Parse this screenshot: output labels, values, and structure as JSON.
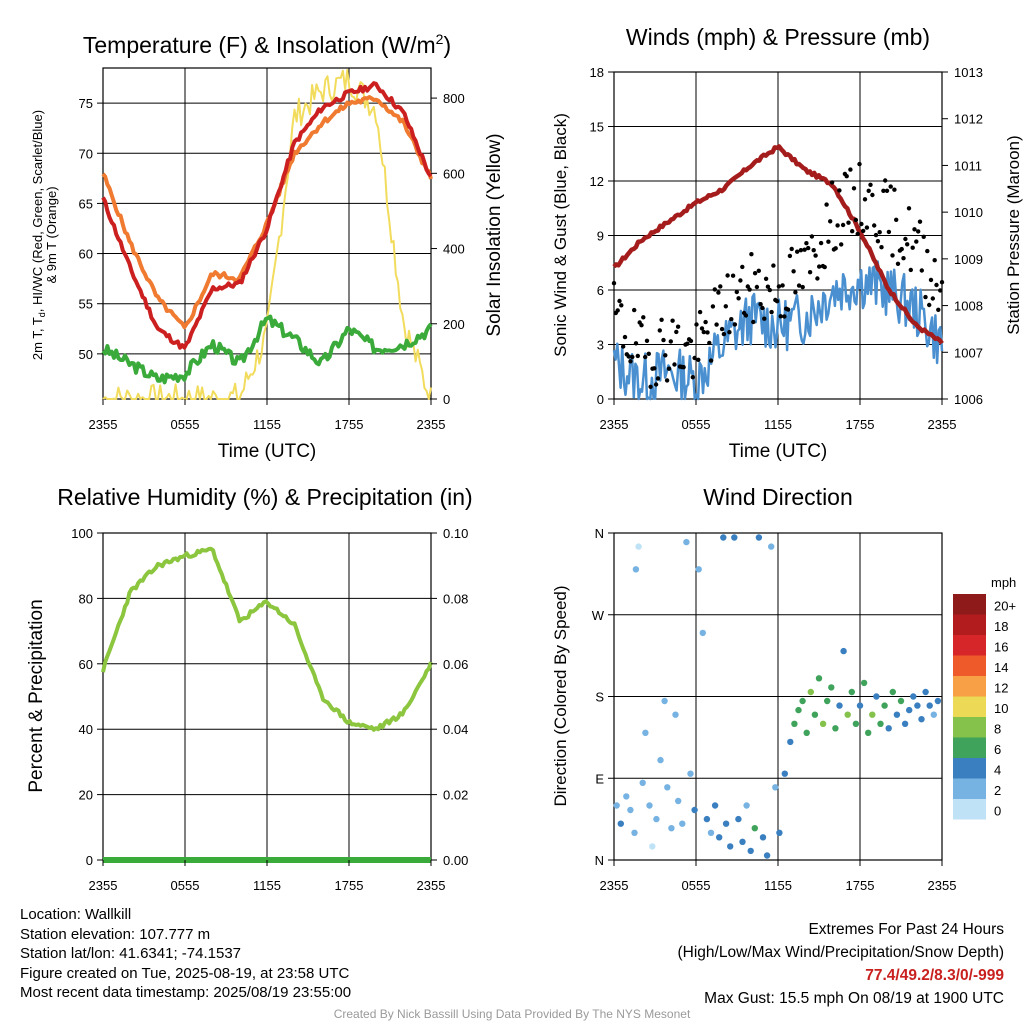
{
  "time_ticks": [
    "2355",
    "0555",
    "1155",
    "1755",
    "2355"
  ],
  "temperature_panel": {
    "title": "Temperature (F) & Insolation (W/m",
    "title_sup": "2",
    "title_end": ")",
    "ylabel_line1": "2m T, T",
    "ylabel_line1_sub": "d",
    "ylabel_line1_end": ", HI/WC (Red, Green, Scarlet/Blue)",
    "ylabel_line2": "& 9m T (Orange)",
    "y2label": "Solar Insolation (Yellow)",
    "xlabel": "Time (UTC)",
    "yticks": [
      "50",
      "55",
      "60",
      "65",
      "70",
      "75"
    ],
    "y2ticks": [
      "0",
      "200",
      "400",
      "600",
      "800"
    ]
  },
  "wind_panel": {
    "title": "Winds (mph) & Pressure (mb)",
    "ylabel": "Sonic Wind & Gust (Blue, Black)",
    "y2label": "Station Pressure (Maroon)",
    "xlabel": "Time (UTC)",
    "yticks": [
      "0",
      "3",
      "6",
      "9",
      "12",
      "15",
      "18"
    ],
    "y2ticks": [
      "1006",
      "1007",
      "1008",
      "1009",
      "1010",
      "1011",
      "1012",
      "1013"
    ]
  },
  "rh_panel": {
    "title": "Relative Humidity (%) & Precipitation (in)",
    "ylabel": "Percent & Precipitation",
    "yticks": [
      "0",
      "20",
      "40",
      "60",
      "80",
      "100"
    ],
    "y2ticks": [
      "0.00",
      "0.02",
      "0.04",
      "0.06",
      "0.08",
      "0.10"
    ]
  },
  "dir_panel": {
    "title": "Wind Direction",
    "ylabel": "Direction (Colored By Speed)",
    "yticks": [
      "N",
      "E",
      "S",
      "W",
      "N"
    ],
    "legend_title": "mph",
    "legend_labels": [
      "20+",
      "18",
      "16",
      "14",
      "12",
      "10",
      "8",
      "6",
      "4",
      "2",
      "0"
    ],
    "legend_colors": [
      "#8e1a1a",
      "#b31c1f",
      "#d6262a",
      "#ee5a2a",
      "#f7a045",
      "#ecd955",
      "#84c24b",
      "#3fa35b",
      "#3a7fbf",
      "#77b3e2",
      "#bfe2f6"
    ]
  },
  "info": {
    "location": "Location: Wallkill",
    "elevation": "Station elevation: 107.777 m",
    "latlon": "Station lat/lon: 41.6341; -74.1537",
    "created": "Figure created on Tue, 2025-08-19, at 23:58 UTC",
    "recent": "Most recent data timestamp: 2025/08/19 23:55:00",
    "extremes_title": "Extremes For Past 24 Hours",
    "extremes_desc": "(High/Low/Max Wind/Precipitation/Snow Depth)",
    "extremes_values": "77.4/49.2/8.3/0/-999",
    "max_gust": "Max Gust: 15.5 mph On 08/19 at 1900 UTC",
    "credit": "Created By Nick Bassill Using Data Provided By The NYS Mesonet"
  },
  "chart_data": [
    {
      "type": "line",
      "title": "Temperature (F) & Insolation (W/m2)",
      "xlabel": "Time (UTC)",
      "x": [
        "2355",
        "0155",
        "0355",
        "0555",
        "0755",
        "0955",
        "1155",
        "1355",
        "1555",
        "1755",
        "1955",
        "2155",
        "2355"
      ],
      "ylim": [
        45.5,
        78.5
      ],
      "y2lim": [
        0,
        880
      ],
      "series": [
        {
          "name": "2m T (Red)",
          "axis": "y",
          "values": [
            65.5,
            58.5,
            52.5,
            50.5,
            56.5,
            57.0,
            62.5,
            71.0,
            74.5,
            76.0,
            76.8,
            74.0,
            67.5
          ]
        },
        {
          "name": "9m T (Orange)",
          "axis": "y",
          "values": [
            68.0,
            61.0,
            55.5,
            52.5,
            58.0,
            57.5,
            63.0,
            70.0,
            73.0,
            75.0,
            75.5,
            73.0,
            67.5
          ]
        },
        {
          "name": "Td (Green)",
          "axis": "y",
          "values": [
            50.5,
            49.0,
            47.5,
            48.0,
            51.0,
            49.0,
            53.5,
            51.5,
            49.0,
            52.5,
            50.5,
            51.0,
            52.5
          ]
        },
        {
          "name": "Solar Insolation (Yellow)",
          "axis": "y2",
          "values": [
            0,
            0,
            0,
            0,
            0,
            5,
            170,
            750,
            820,
            850,
            770,
            200,
            0
          ]
        }
      ]
    },
    {
      "type": "line",
      "title": "Winds (mph) & Pressure (mb)",
      "xlabel": "Time (UTC)",
      "x": [
        "2355",
        "0155",
        "0355",
        "0555",
        "0755",
        "0955",
        "1155",
        "1355",
        "1555",
        "1755",
        "1955",
        "2155",
        "2355"
      ],
      "ylim": [
        0,
        18
      ],
      "y2lim": [
        1006,
        1013
      ],
      "series": [
        {
          "name": "Sonic Wind (Blue)",
          "axis": "y",
          "values": [
            2.0,
            1.0,
            1.5,
            1.0,
            3.0,
            4.5,
            4.0,
            4.5,
            6.0,
            6.5,
            6.0,
            5.0,
            3.0
          ]
        },
        {
          "name": "Gust (Black)",
          "axis": "y",
          "values": [
            4.5,
            2.5,
            3.0,
            2.5,
            5.0,
            6.0,
            6.0,
            7.0,
            10.0,
            11.0,
            10.0,
            8.5,
            6.0
          ]
        },
        {
          "name": "Station Pressure (Maroon)",
          "axis": "y2",
          "values": [
            1008.8,
            1009.4,
            1009.8,
            1010.2,
            1010.5,
            1011.0,
            1011.4,
            1010.9,
            1010.6,
            1009.6,
            1008.4,
            1007.6,
            1007.2
          ]
        }
      ]
    },
    {
      "type": "line",
      "title": "Relative Humidity (%) & Precipitation (in)",
      "x": [
        "2355",
        "0155",
        "0355",
        "0555",
        "0755",
        "0955",
        "1155",
        "1355",
        "1555",
        "1755",
        "1955",
        "2155",
        "2355"
      ],
      "ylim": [
        0,
        100
      ],
      "y2lim": [
        0,
        0.1
      ],
      "series": [
        {
          "name": "Relative Humidity (Light Green)",
          "axis": "y",
          "values": [
            58,
            82,
            90,
            93,
            95,
            73,
            79,
            72,
            50,
            42,
            40,
            45,
            60
          ]
        },
        {
          "name": "Precipitation (Green)",
          "axis": "y2",
          "values": [
            0,
            0,
            0,
            0,
            0,
            0,
            0,
            0,
            0,
            0,
            0,
            0,
            0
          ]
        }
      ]
    },
    {
      "type": "scatter",
      "title": "Wind Direction",
      "ylabel": "Direction (Colored By Speed)",
      "x_ticks": [
        "2355",
        "0555",
        "1155",
        "1755",
        "2355"
      ],
      "y_ticks": [
        "N",
        "E",
        "S",
        "W",
        "N"
      ],
      "ylim_deg": [
        0,
        360
      ],
      "xlim_hours": [
        0,
        24
      ],
      "color_scale_mph": [
        0,
        2,
        4,
        6,
        8,
        10,
        12,
        14,
        16,
        18,
        20
      ],
      "points": [
        {
          "t": 0.2,
          "dir": 60,
          "mph": 2
        },
        {
          "t": 0.5,
          "dir": 40,
          "mph": 3
        },
        {
          "t": 0.9,
          "dir": 70,
          "mph": 1
        },
        {
          "t": 1.2,
          "dir": 55,
          "mph": 1
        },
        {
          "t": 1.5,
          "dir": 30,
          "mph": 1
        },
        {
          "t": 1.6,
          "dir": 320,
          "mph": 1
        },
        {
          "t": 1.8,
          "dir": 345,
          "mph": 0
        },
        {
          "t": 2.1,
          "dir": 85,
          "mph": 2
        },
        {
          "t": 2.3,
          "dir": 140,
          "mph": 1
        },
        {
          "t": 2.6,
          "dir": 60,
          "mph": 1
        },
        {
          "t": 2.8,
          "dir": 15,
          "mph": 0
        },
        {
          "t": 3.1,
          "dir": 45,
          "mph": 2
        },
        {
          "t": 3.4,
          "dir": 110,
          "mph": 1
        },
        {
          "t": 3.7,
          "dir": 175,
          "mph": 1
        },
        {
          "t": 3.9,
          "dir": 80,
          "mph": 2
        },
        {
          "t": 4.2,
          "dir": 35,
          "mph": 1
        },
        {
          "t": 4.5,
          "dir": 160,
          "mph": 1
        },
        {
          "t": 4.7,
          "dir": 65,
          "mph": 2
        },
        {
          "t": 5.0,
          "dir": 40,
          "mph": 1
        },
        {
          "t": 5.3,
          "dir": 350,
          "mph": 1
        },
        {
          "t": 5.6,
          "dir": 95,
          "mph": 1
        },
        {
          "t": 5.9,
          "dir": 55,
          "mph": 3
        },
        {
          "t": 6.2,
          "dir": 320,
          "mph": 1
        },
        {
          "t": 6.5,
          "dir": 250,
          "mph": 1
        },
        {
          "t": 6.8,
          "dir": 45,
          "mph": 3
        },
        {
          "t": 7.1,
          "dir": 30,
          "mph": 2
        },
        {
          "t": 7.4,
          "dir": 60,
          "mph": 4
        },
        {
          "t": 7.7,
          "dir": 25,
          "mph": 3
        },
        {
          "t": 8.0,
          "dir": 355,
          "mph": 4
        },
        {
          "t": 8.2,
          "dir": 40,
          "mph": 4
        },
        {
          "t": 8.5,
          "dir": 15,
          "mph": 3
        },
        {
          "t": 8.8,
          "dir": 355,
          "mph": 3
        },
        {
          "t": 9.1,
          "dir": 45,
          "mph": 3
        },
        {
          "t": 9.4,
          "dir": 20,
          "mph": 4
        },
        {
          "t": 9.7,
          "dir": 60,
          "mph": 2
        },
        {
          "t": 10.0,
          "dir": 10,
          "mph": 4
        },
        {
          "t": 10.3,
          "dir": 35,
          "mph": 5
        },
        {
          "t": 10.6,
          "dir": 355,
          "mph": 4
        },
        {
          "t": 10.9,
          "dir": 25,
          "mph": 3
        },
        {
          "t": 11.2,
          "dir": 5,
          "mph": 4
        },
        {
          "t": 11.5,
          "dir": 345,
          "mph": 2
        },
        {
          "t": 11.8,
          "dir": 80,
          "mph": 2
        },
        {
          "t": 12.1,
          "dir": 30,
          "mph": 3
        },
        {
          "t": 12.5,
          "dir": 95,
          "mph": 3
        },
        {
          "t": 12.9,
          "dir": 130,
          "mph": 4
        },
        {
          "t": 13.2,
          "dir": 150,
          "mph": 5
        },
        {
          "t": 13.5,
          "dir": 165,
          "mph": 6
        },
        {
          "t": 13.8,
          "dir": 175,
          "mph": 5
        },
        {
          "t": 14.1,
          "dir": 140,
          "mph": 6
        },
        {
          "t": 14.4,
          "dir": 185,
          "mph": 7
        },
        {
          "t": 14.7,
          "dir": 160,
          "mph": 5
        },
        {
          "t": 15.0,
          "dir": 200,
          "mph": 6
        },
        {
          "t": 15.3,
          "dir": 150,
          "mph": 7
        },
        {
          "t": 15.6,
          "dir": 175,
          "mph": 6
        },
        {
          "t": 15.9,
          "dir": 190,
          "mph": 5
        },
        {
          "t": 16.2,
          "dir": 145,
          "mph": 6
        },
        {
          "t": 16.5,
          "dir": 170,
          "mph": 4
        },
        {
          "t": 16.8,
          "dir": 230,
          "mph": 4
        },
        {
          "t": 17.1,
          "dir": 160,
          "mph": 7
        },
        {
          "t": 17.4,
          "dir": 185,
          "mph": 5
        },
        {
          "t": 17.7,
          "dir": 150,
          "mph": 6
        },
        {
          "t": 18.0,
          "dir": 170,
          "mph": 4
        },
        {
          "t": 18.3,
          "dir": 195,
          "mph": 5
        },
        {
          "t": 18.6,
          "dir": 140,
          "mph": 6
        },
        {
          "t": 18.9,
          "dir": 160,
          "mph": 7
        },
        {
          "t": 19.2,
          "dir": 180,
          "mph": 4
        },
        {
          "t": 19.5,
          "dir": 150,
          "mph": 5
        },
        {
          "t": 19.8,
          "dir": 170,
          "mph": 6
        },
        {
          "t": 20.1,
          "dir": 145,
          "mph": 4
        },
        {
          "t": 20.4,
          "dir": 185,
          "mph": 5
        },
        {
          "t": 20.7,
          "dir": 160,
          "mph": 4
        },
        {
          "t": 21.0,
          "dir": 175,
          "mph": 6
        },
        {
          "t": 21.3,
          "dir": 150,
          "mph": 4
        },
        {
          "t": 21.6,
          "dir": 165,
          "mph": 3
        },
        {
          "t": 21.9,
          "dir": 180,
          "mph": 4
        },
        {
          "t": 22.2,
          "dir": 170,
          "mph": 3
        },
        {
          "t": 22.5,
          "dir": 155,
          "mph": 4
        },
        {
          "t": 22.8,
          "dir": 185,
          "mph": 3
        },
        {
          "t": 23.1,
          "dir": 170,
          "mph": 4
        },
        {
          "t": 23.4,
          "dir": 160,
          "mph": 2
        },
        {
          "t": 23.7,
          "dir": 175,
          "mph": 3
        }
      ]
    }
  ]
}
